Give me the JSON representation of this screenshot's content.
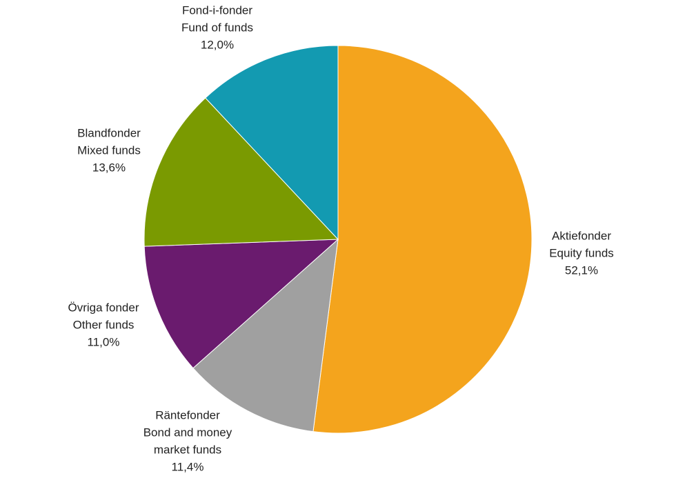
{
  "chart_data": {
    "type": "pie",
    "categories": [
      [
        "Aktiefonder",
        "Equity funds"
      ],
      [
        "Räntefonder",
        "Bond and money",
        "market funds"
      ],
      [
        "Övriga fonder",
        "Other funds"
      ],
      [
        "Blandfonder",
        "Mixed funds"
      ],
      [
        "Fond-i-fonder",
        "Fund of funds"
      ]
    ],
    "values": [
      52.1,
      11.4,
      11.0,
      13.6,
      12.0
    ],
    "value_labels": [
      "52,1%",
      "11,4%",
      "11,0%",
      "13,6%",
      "12,0%"
    ],
    "colors": [
      "#f4a41d",
      "#a0a0a0",
      "#6a1b6e",
      "#7a9a01",
      "#139ab1"
    ]
  }
}
